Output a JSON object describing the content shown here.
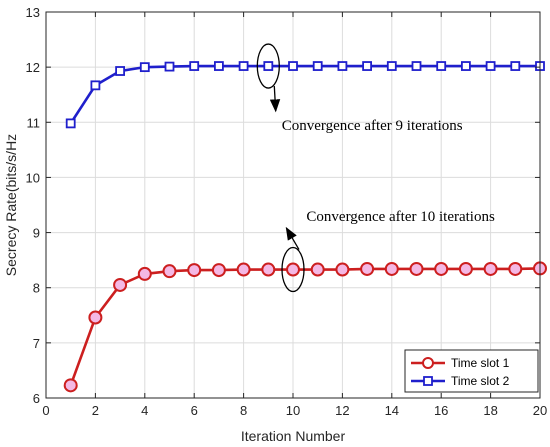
{
  "chart_data": {
    "type": "line",
    "xlabel": "Iteration Number",
    "ylabel": "Secrecy Rate(bits/s/Hz",
    "xlim": [
      0,
      20
    ],
    "ylim": [
      6,
      13
    ],
    "xticks": [
      0,
      2,
      4,
      6,
      8,
      10,
      12,
      14,
      16,
      18,
      20
    ],
    "yticks": [
      6,
      7,
      8,
      9,
      10,
      11,
      12,
      13
    ],
    "grid": true,
    "legend_position": "bottom-right",
    "x": [
      1,
      2,
      3,
      4,
      5,
      6,
      7,
      8,
      9,
      10,
      11,
      12,
      13,
      14,
      15,
      16,
      17,
      18,
      19,
      20
    ],
    "series": [
      {
        "name": "Time slot 1",
        "color": "#cc1f1f",
        "marker": "circle",
        "values": [
          6.23,
          7.46,
          8.05,
          8.25,
          8.3,
          8.32,
          8.32,
          8.33,
          8.33,
          8.33,
          8.33,
          8.33,
          8.34,
          8.34,
          8.34,
          8.34,
          8.34,
          8.34,
          8.34,
          8.35
        ]
      },
      {
        "name": "Time slot 2",
        "color": "#1f1fcc",
        "marker": "square",
        "values": [
          10.98,
          11.67,
          11.93,
          12.0,
          12.01,
          12.02,
          12.02,
          12.02,
          12.02,
          12.02,
          12.02,
          12.02,
          12.02,
          12.02,
          12.02,
          12.02,
          12.02,
          12.02,
          12.02,
          12.02
        ]
      }
    ],
    "annotations": [
      {
        "text": "Convergence after 9 iterations",
        "target": {
          "x": 9,
          "y": 12.02
        },
        "text_anchor": {
          "x": 9.3,
          "y": 10.95
        }
      },
      {
        "text": "Convergence after 10 iterations",
        "target": {
          "x": 10,
          "y": 8.33
        },
        "text_anchor": {
          "x": 10.3,
          "y": 9.3
        }
      }
    ]
  }
}
